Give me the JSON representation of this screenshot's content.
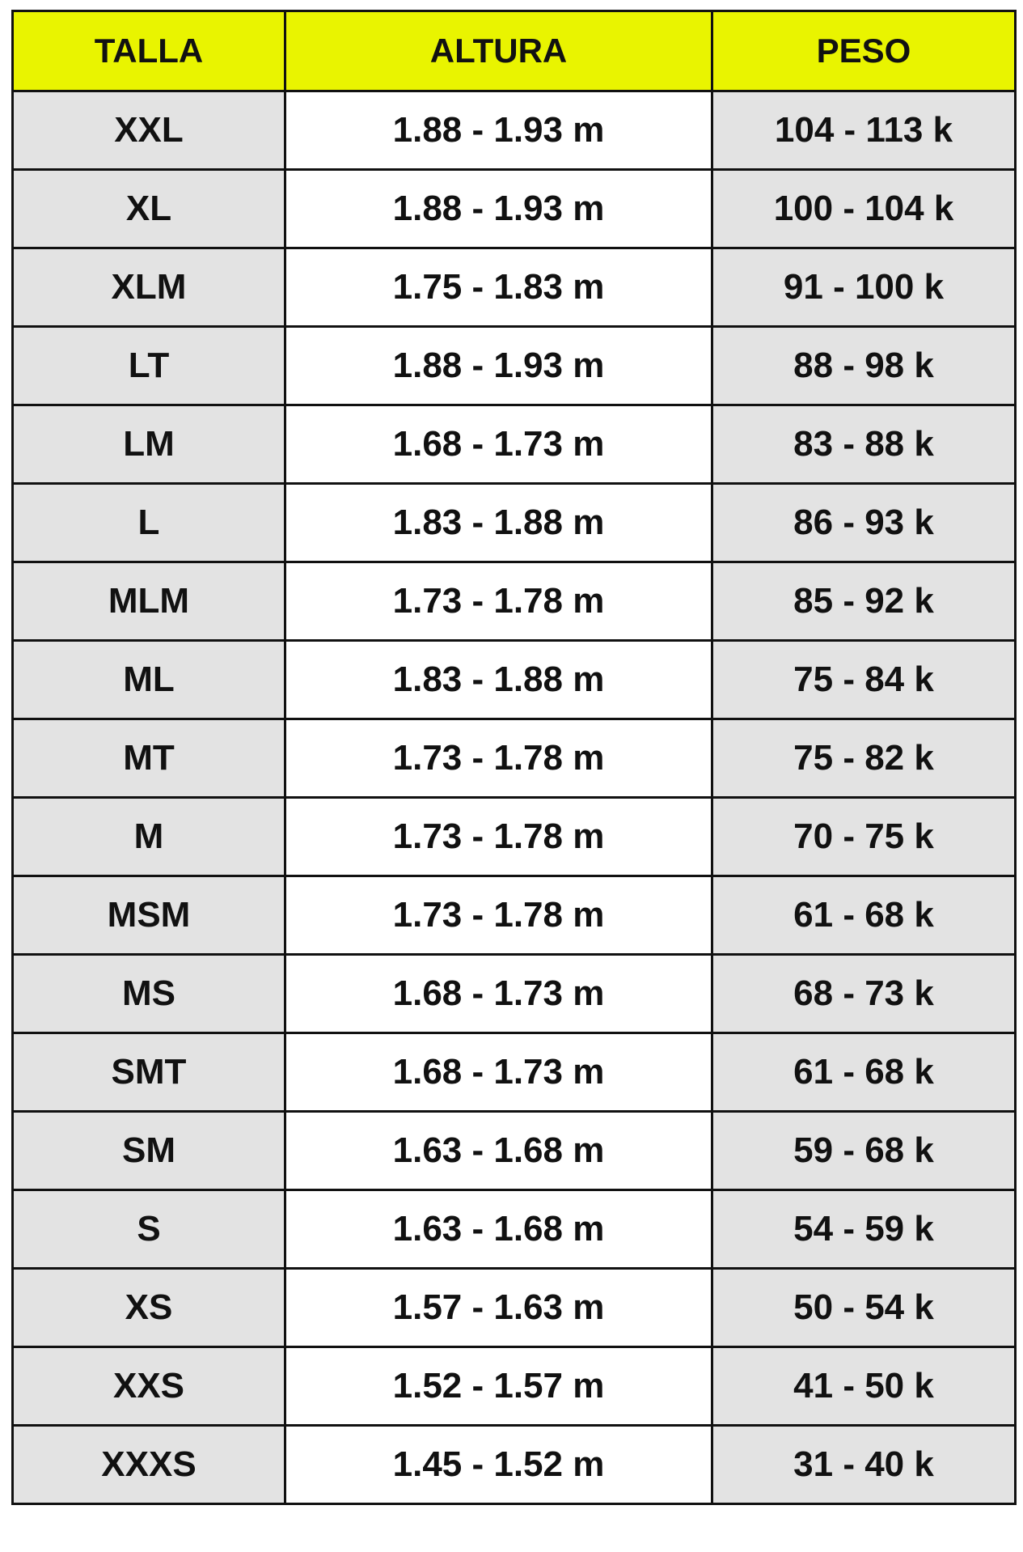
{
  "colors": {
    "header_background": "#e9f400",
    "shaded_column_background": "#e3e3e3",
    "text": "#111111",
    "border": "#111111"
  },
  "table": {
    "headers": [
      "TALLA",
      "ALTURA",
      "PESO"
    ],
    "rows": [
      [
        "XXL",
        "1.88 - 1.93 m",
        "104 - 113 k"
      ],
      [
        "XL",
        "1.88 - 1.93 m",
        "100 - 104 k"
      ],
      [
        "XLM",
        "1.75 - 1.83 m",
        "91 - 100 k"
      ],
      [
        "LT",
        "1.88 - 1.93 m",
        "88 - 98 k"
      ],
      [
        "LM",
        "1.68 - 1.73 m",
        "83 - 88 k"
      ],
      [
        "L",
        "1.83 - 1.88 m",
        "86 - 93 k"
      ],
      [
        "MLM",
        "1.73 - 1.78 m",
        "85 - 92 k"
      ],
      [
        "ML",
        "1.83 - 1.88 m",
        "75 - 84 k"
      ],
      [
        "MT",
        "1.73 - 1.78 m",
        "75 - 82 k"
      ],
      [
        "M",
        "1.73 - 1.78 m",
        "70 - 75 k"
      ],
      [
        "MSM",
        "1.73 - 1.78 m",
        "61 - 68 k"
      ],
      [
        "MS",
        "1.68 - 1.73 m",
        "68 - 73 k"
      ],
      [
        "SMT",
        "1.68 - 1.73 m",
        "61 - 68 k"
      ],
      [
        "SM",
        "1.63 - 1.68 m",
        "59 - 68 k"
      ],
      [
        "S",
        "1.63 - 1.68 m",
        "54 - 59 k"
      ],
      [
        "XS",
        "1.57 - 1.63 m",
        "50 - 54 k"
      ],
      [
        "XXS",
        "1.52 - 1.57 m",
        "41 - 50 k"
      ],
      [
        "XXXS",
        "1.45 - 1.52 m",
        "31 - 40 k"
      ]
    ]
  }
}
